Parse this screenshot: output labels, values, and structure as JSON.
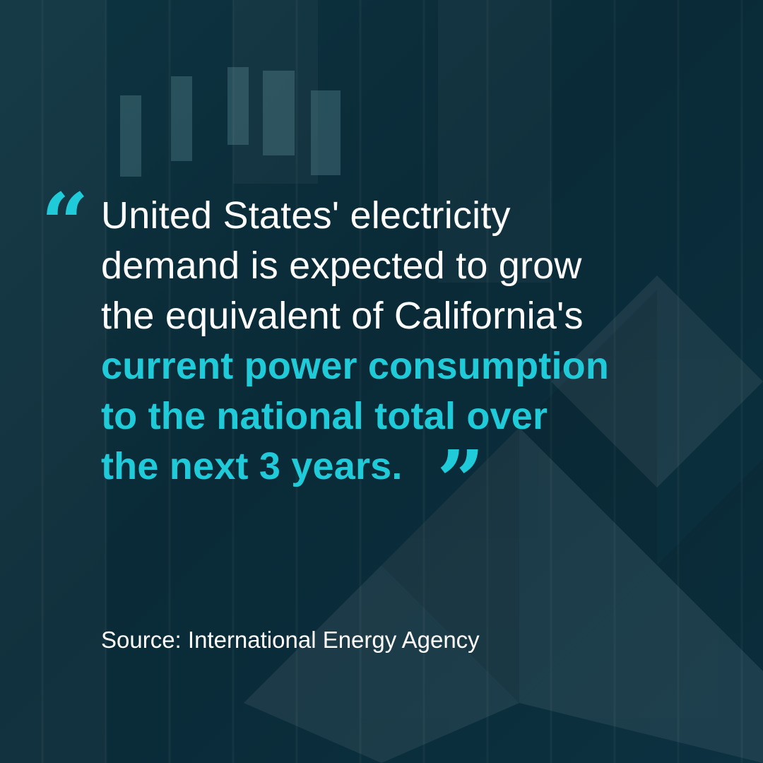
{
  "quote": {
    "open_mark": "“",
    "close_mark": "”",
    "plain_lines": [
      "United States' electricity",
      "demand is expected to grow",
      "the equivalent of California's"
    ],
    "accent_lines": [
      "current power consumption",
      "to the national total over",
      "the next 3 years."
    ]
  },
  "source": "Source: International Energy Agency",
  "colors": {
    "background": "#0b2d3a",
    "accent": "#1fcbd9",
    "text": "#ffffff"
  }
}
